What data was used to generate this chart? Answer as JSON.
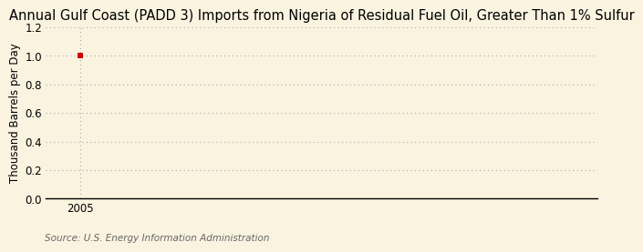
{
  "title": "Annual Gulf Coast (PADD 3) Imports from Nigeria of Residual Fuel Oil, Greater Than 1% Sulfur",
  "ylabel": "Thousand Barrels per Day",
  "source_text": "Source: U.S. Energy Information Administration",
  "x_data": [
    2005
  ],
  "y_data": [
    1.0
  ],
  "xlim": [
    2004.4,
    2014.0
  ],
  "ylim": [
    0.0,
    1.2
  ],
  "yticks": [
    0.0,
    0.2,
    0.4,
    0.6,
    0.8,
    1.0,
    1.2
  ],
  "xticks": [
    2005
  ],
  "marker_color": "#cc0000",
  "marker_size": 4,
  "background_color": "#faf3e0",
  "grid_color": "#aaaaaa",
  "axis_label_fontsize": 8.5,
  "title_fontsize": 10.5,
  "tick_fontsize": 8.5,
  "source_fontsize": 7.5,
  "source_color": "#666666"
}
